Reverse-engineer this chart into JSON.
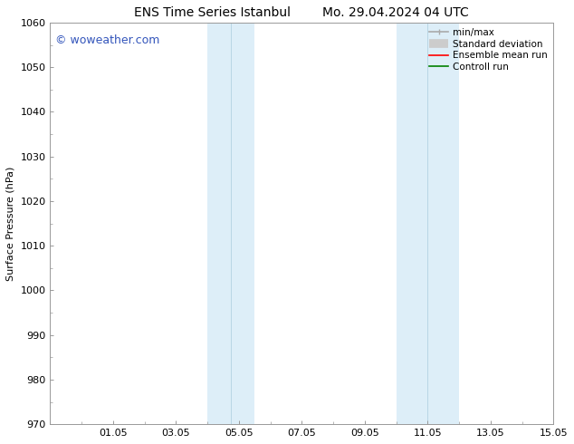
{
  "title_left": "ENS Time Series Istanbul",
  "title_right": "Mo. 29.04.2024 04 UTC",
  "ylabel": "Surface Pressure (hPa)",
  "ylim": [
    970,
    1060
  ],
  "yticks": [
    970,
    980,
    990,
    1000,
    1010,
    1020,
    1030,
    1040,
    1050,
    1060
  ],
  "xtick_labels": [
    "01.05",
    "03.05",
    "05.05",
    "07.05",
    "09.05",
    "11.05",
    "13.05",
    "15.05"
  ],
  "xtick_positions": [
    2,
    4,
    6,
    8,
    10,
    12,
    14,
    16
  ],
  "xlim": [
    0,
    16
  ],
  "shaded_bands": [
    {
      "xmin": 5.0,
      "xmax": 6.5
    },
    {
      "xmin": 11.0,
      "xmax": 13.0
    }
  ],
  "shade_color": "#ddeef8",
  "shade_alpha": 1.0,
  "watermark_text": "© woweather.com",
  "watermark_color": "#3355bb",
  "watermark_fontsize": 9,
  "legend_entries": [
    {
      "label": "min/max",
      "color": "#aaaaaa",
      "lw": 1.2,
      "style": "minmax"
    },
    {
      "label": "Standard deviation",
      "color": "#cccccc",
      "lw": 7,
      "style": "thick"
    },
    {
      "label": "Ensemble mean run",
      "color": "red",
      "lw": 1.2,
      "style": "line"
    },
    {
      "label": "Controll run",
      "color": "green",
      "lw": 1.2,
      "style": "line"
    }
  ],
  "background_color": "#ffffff",
  "title_fontsize": 10,
  "label_fontsize": 8,
  "tick_fontsize": 8,
  "legend_fontsize": 7.5
}
